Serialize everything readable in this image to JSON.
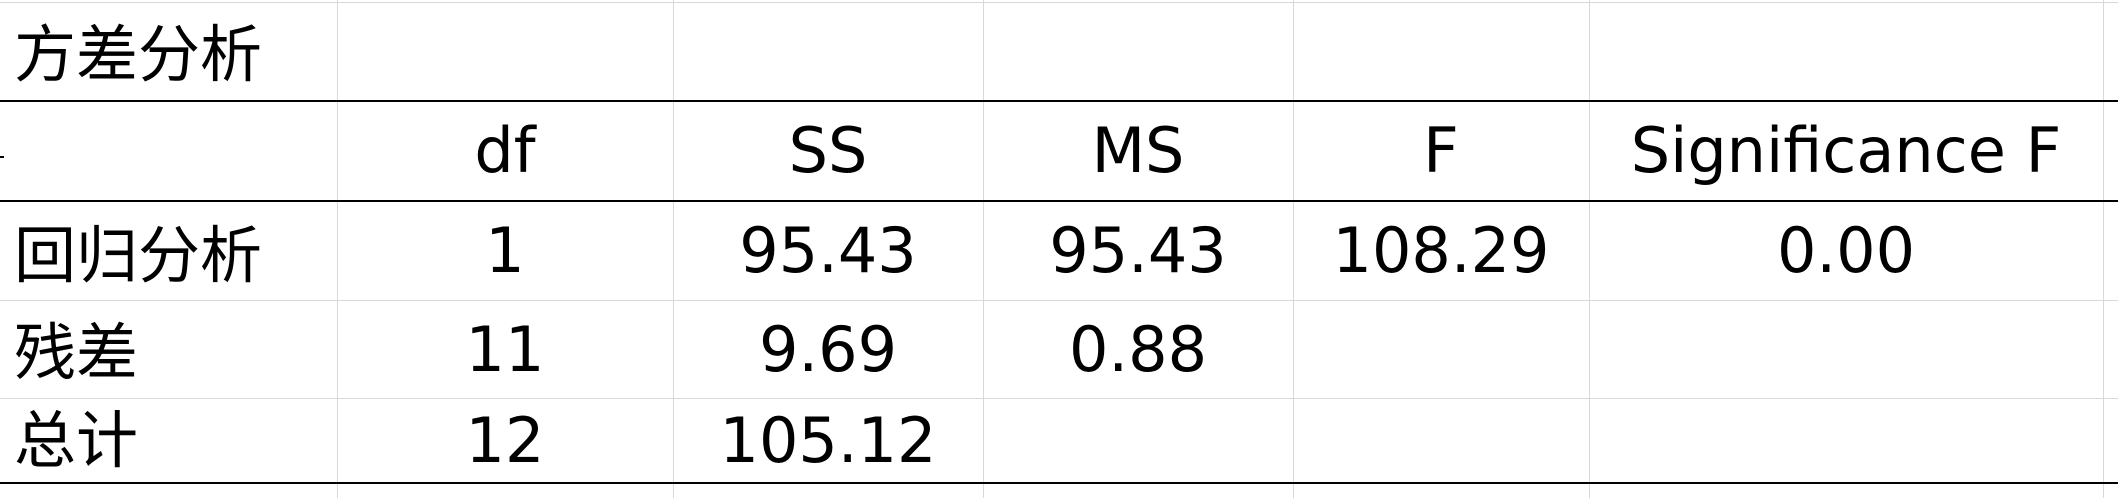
{
  "title": "方差分析",
  "columns": [
    "",
    "df",
    "SS",
    "MS",
    "F",
    "Significance F"
  ],
  "rows": [
    {
      "label": "回归分析",
      "df": "1",
      "ss": "95.43",
      "ms": "95.43",
      "f": "108.29",
      "sig": "0.00"
    },
    {
      "label": "残差",
      "df": "11",
      "ss": "9.69",
      "ms": "0.88",
      "f": "",
      "sig": ""
    },
    {
      "label": "总计",
      "df": "12",
      "ss": "105.12",
      "ms": "",
      "f": "",
      "sig": ""
    }
  ],
  "colors": {
    "gridline": "#d9d9d9",
    "rule": "#000000",
    "background": "#ffffff"
  }
}
